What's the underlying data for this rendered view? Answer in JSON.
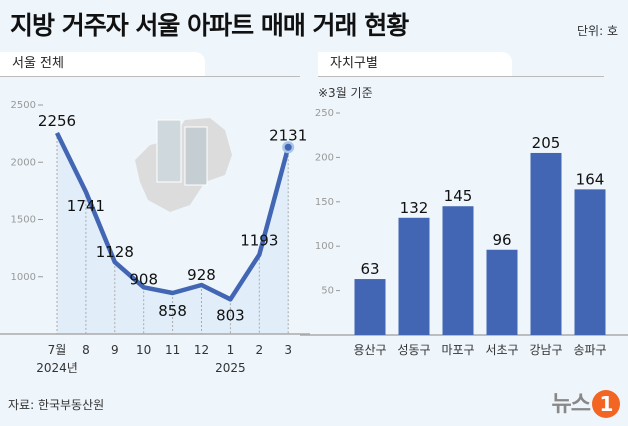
{
  "header": {
    "title": "지방 거주자 서울 아파트 매매 거래 현황",
    "unit": "단위: 호"
  },
  "sections": {
    "left": "서울 전체",
    "right": "자치구별",
    "right_note": "※3월 기준"
  },
  "footer": {
    "source": "자료: 한국부동산원",
    "logo_text": "뉴스",
    "logo_mark": "1"
  },
  "colors": {
    "bar": "#4266b3",
    "line": "#4266b3",
    "background": "#eef6fc",
    "logo": "#f26522"
  },
  "chart_data": [
    {
      "type": "line",
      "categories": [
        "7월",
        "8",
        "9",
        "10",
        "11",
        "12",
        "1",
        "2",
        "3"
      ],
      "year_labels": {
        "first": "2024년",
        "seventh": "2025"
      },
      "values": [
        2256,
        1741,
        1128,
        908,
        858,
        928,
        803,
        1193,
        2131
      ],
      "yticks": [
        "2500",
        "2000",
        "1500",
        "1000"
      ],
      "ylim": [
        500,
        2500
      ],
      "grid": false
    },
    {
      "type": "bar",
      "categories": [
        "용산구",
        "성동구",
        "마포구",
        "서초구",
        "강남구",
        "송파구"
      ],
      "values": [
        63,
        132,
        145,
        96,
        205,
        164
      ],
      "yticks": [
        "250",
        "200",
        "150",
        "100",
        "50"
      ],
      "ylim": [
        0,
        250
      ],
      "grid": false
    }
  ]
}
